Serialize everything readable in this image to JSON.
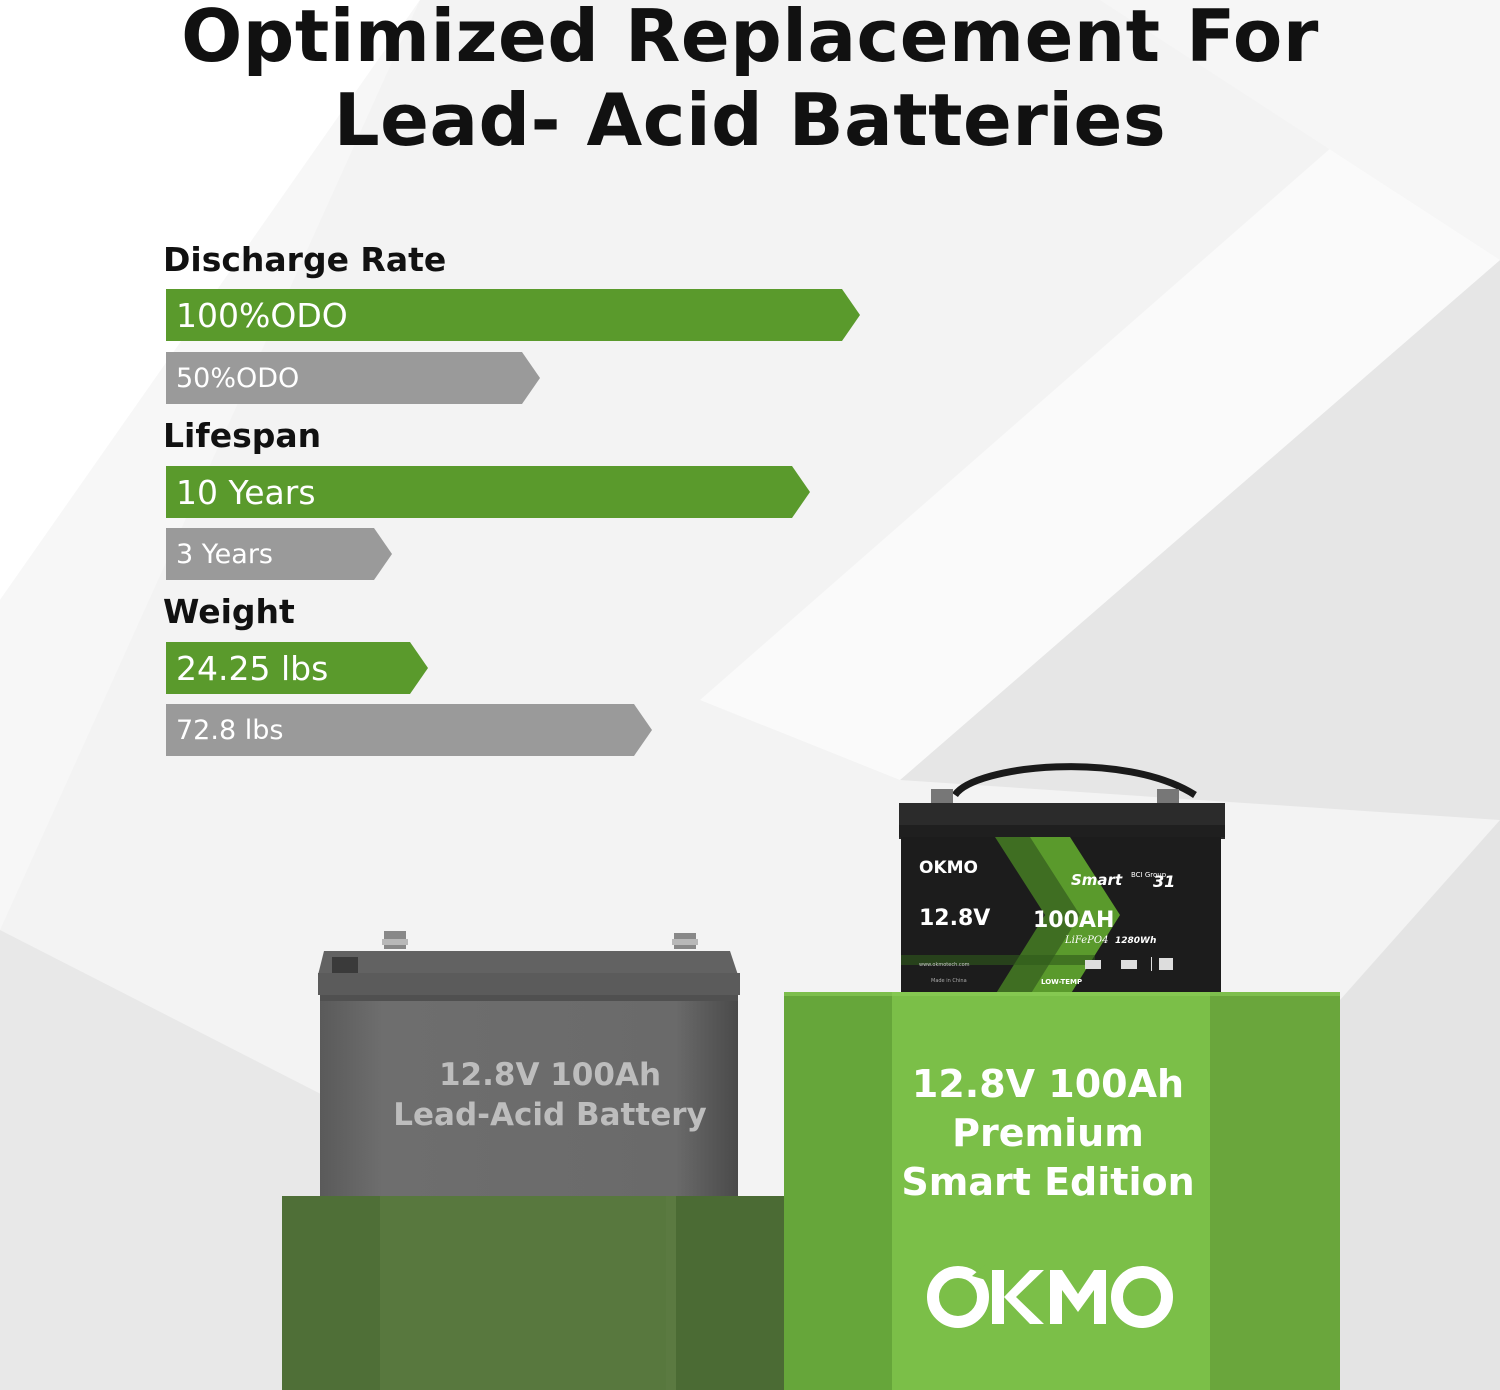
{
  "title": {
    "line1": "Optimized Replacement For",
    "line2": "Lead- Acid Batteries"
  },
  "comparisons": [
    {
      "category": "Discharge Rate",
      "primary": {
        "label": "100%ODO"
      },
      "secondary": {
        "label": "50%ODO"
      }
    },
    {
      "category": "Lifespan",
      "primary": {
        "label": "10 Years"
      },
      "secondary": {
        "label": "3 Years"
      }
    },
    {
      "category": "Weight",
      "primary": {
        "label": "24.25 lbs"
      },
      "secondary": {
        "label": "72.8 lbs"
      }
    }
  ],
  "lead_acid": {
    "line1": "12.8V 100Ah",
    "line2": "Lead-Acid Battery"
  },
  "okmo_product": {
    "line1": "12.8V 100Ah",
    "line2": "Premium",
    "line3": "Smart Edition"
  },
  "brand": "OKMO",
  "battery_label": {
    "brand": "OKMO",
    "voltage": "12.8V",
    "capacity": "100AH",
    "chemistry": "LiFePO4",
    "energy": "1280Wh",
    "smart": "Smart",
    "group_prefix": "BCI Group",
    "group": "31",
    "website": "www.okmotech.com",
    "origin": "Made in China",
    "feature": "LOW-TEMP"
  },
  "colors": {
    "accent_green": "#5a9a2c",
    "gray_bar": "#9a9a9a",
    "pedestal_green": "#6fb73f",
    "title": "#111111"
  }
}
